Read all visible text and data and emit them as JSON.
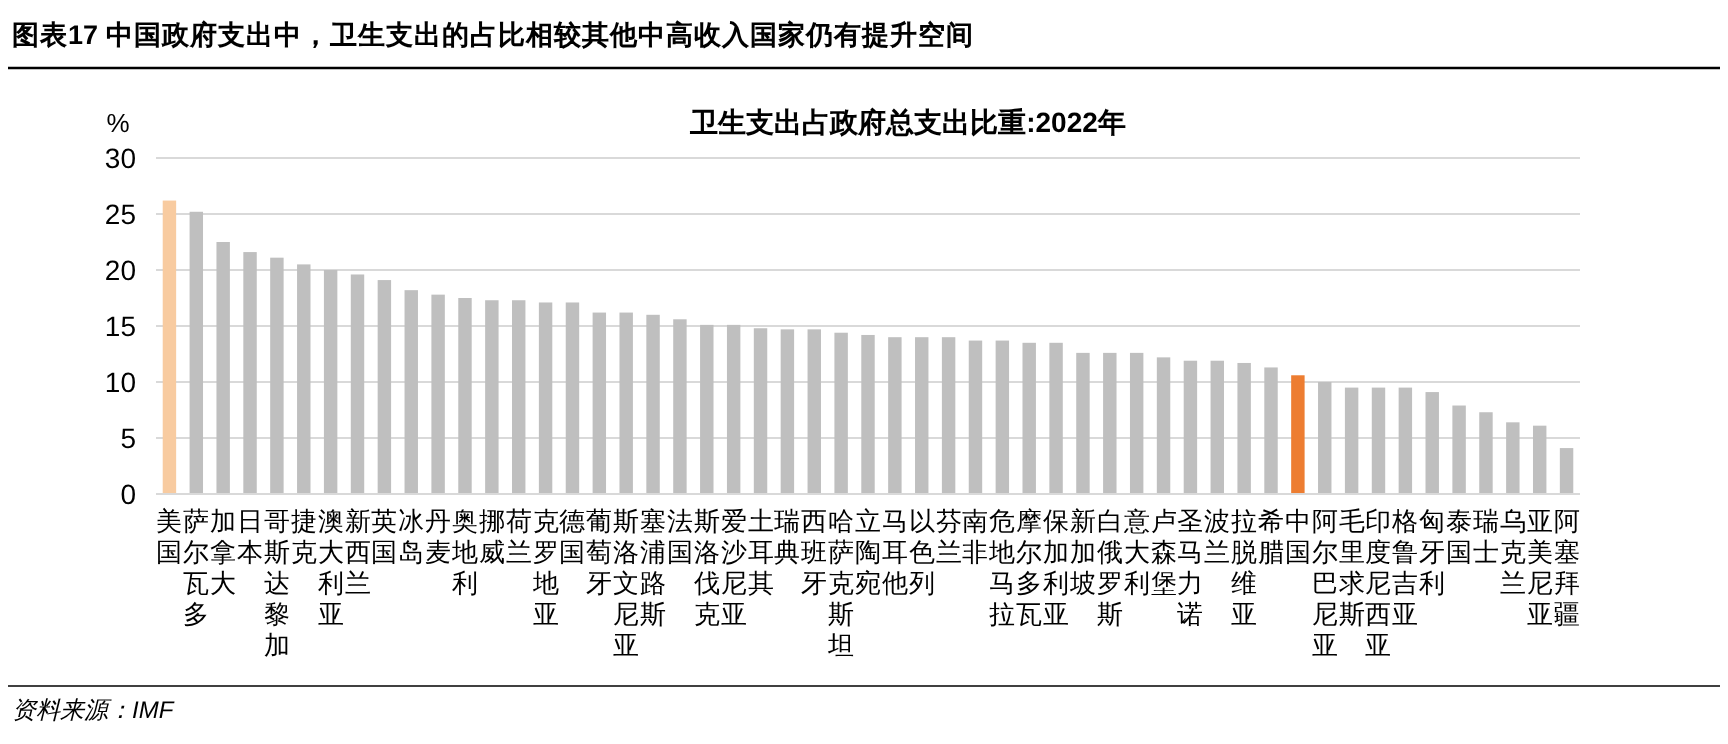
{
  "chart_data": {
    "type": "bar",
    "title": "图表17    中国政府支出中，卫生支出的占比相较其他中高收入国家仍有提升空间",
    "subtitle": "卫生支出占政府总支出比重:2022年",
    "ylabel": "%",
    "categories": [
      "美国",
      "萨尔瓦多",
      "加拿大",
      "日本",
      "哥斯达黎加",
      "捷克",
      "澳大利亚",
      "新西兰",
      "英国",
      "冰岛",
      "丹麦",
      "奥地利",
      "挪威",
      "荷兰",
      "克罗地亚",
      "德国",
      "葡萄牙",
      "斯洛文尼亚",
      "塞浦路斯",
      "法国",
      "斯洛伐克",
      "爱沙尼亚",
      "土耳其",
      "瑞典",
      "西班牙",
      "哈萨克斯坦",
      "立陶宛",
      "马耳他",
      "以色列",
      "芬兰",
      "南非",
      "危地马拉",
      "摩尔多瓦",
      "保加利亚",
      "新加坡",
      "白俄罗斯",
      "意大利",
      "卢森堡",
      "圣马力诺",
      "波兰",
      "拉脱维亚",
      "希腊",
      "中国",
      "阿尔巴尼亚",
      "毛里求斯",
      "印度尼西亚",
      "格鲁吉亚",
      "匈牙利",
      "泰国",
      "瑞士",
      "乌克兰",
      "亚美尼亚",
      "阿塞拜疆"
    ],
    "values": [
      26.2,
      25.2,
      22.5,
      21.6,
      21.1,
      20.5,
      20.0,
      19.6,
      19.1,
      18.2,
      17.8,
      17.5,
      17.3,
      17.3,
      17.1,
      17.1,
      16.2,
      16.2,
      16.0,
      15.6,
      15.1,
      15.1,
      14.8,
      14.7,
      14.7,
      14.4,
      14.2,
      14.0,
      14.0,
      14.0,
      13.7,
      13.7,
      13.5,
      13.5,
      12.6,
      12.6,
      12.6,
      12.2,
      11.9,
      11.9,
      11.7,
      11.3,
      10.6,
      10.0,
      9.5,
      9.5,
      9.5,
      9.1,
      7.9,
      7.3,
      6.4,
      6.1,
      4.1
    ],
    "colors": [
      "#f8cba0",
      "#bfbfbf",
      "#bfbfbf",
      "#bfbfbf",
      "#bfbfbf",
      "#bfbfbf",
      "#bfbfbf",
      "#bfbfbf",
      "#bfbfbf",
      "#bfbfbf",
      "#bfbfbf",
      "#bfbfbf",
      "#bfbfbf",
      "#bfbfbf",
      "#bfbfbf",
      "#bfbfbf",
      "#bfbfbf",
      "#bfbfbf",
      "#bfbfbf",
      "#bfbfbf",
      "#bfbfbf",
      "#bfbfbf",
      "#bfbfbf",
      "#bfbfbf",
      "#bfbfbf",
      "#bfbfbf",
      "#bfbfbf",
      "#bfbfbf",
      "#bfbfbf",
      "#bfbfbf",
      "#bfbfbf",
      "#bfbfbf",
      "#bfbfbf",
      "#bfbfbf",
      "#bfbfbf",
      "#bfbfbf",
      "#bfbfbf",
      "#bfbfbf",
      "#bfbfbf",
      "#bfbfbf",
      "#bfbfbf",
      "#bfbfbf",
      "#ed7d31",
      "#bfbfbf",
      "#bfbfbf",
      "#bfbfbf",
      "#bfbfbf",
      "#bfbfbf",
      "#bfbfbf",
      "#bfbfbf",
      "#bfbfbf",
      "#bfbfbf",
      "#bfbfbf"
    ],
    "ylim": [
      0,
      30
    ],
    "yticks": [
      0,
      5,
      10,
      15,
      20,
      25,
      30
    ],
    "grid": "y",
    "annotations": [
      "资料来源：IMF"
    ]
  }
}
